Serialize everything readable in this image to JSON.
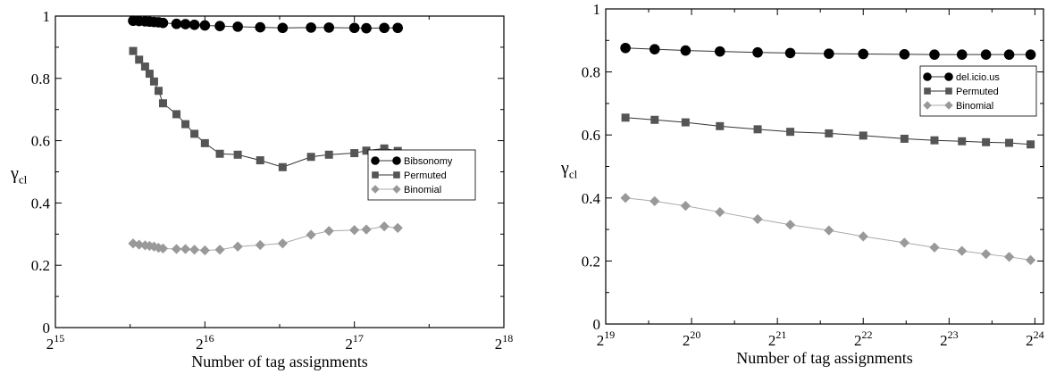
{
  "chart_data": [
    {
      "type": "line",
      "xlabel": "Number of tag assignments",
      "ylabel": "γ",
      "ylabel_sub": "cl",
      "x_scale": "log2",
      "xlim_exp": [
        15,
        18
      ],
      "x_tick_exps": [
        15,
        16,
        17,
        18
      ],
      "x_tick_base": "2",
      "ylim": [
        0,
        1
      ],
      "y_ticks": [
        "0",
        "0.2",
        "0.4",
        "0.6",
        "0.8",
        "1"
      ],
      "legend_position": "right",
      "series": [
        {
          "name": "Bibsonomy",
          "marker": "circle",
          "color": "#000000",
          "x_exp": [
            15.52,
            15.56,
            15.6,
            15.63,
            15.66,
            15.69,
            15.72,
            15.81,
            15.87,
            15.93,
            16.0,
            16.1,
            16.22,
            16.37,
            16.52,
            16.71,
            16.83,
            17.0,
            17.08,
            17.2,
            17.29
          ],
          "y": [
            0.985,
            0.984,
            0.983,
            0.982,
            0.981,
            0.98,
            0.978,
            0.975,
            0.974,
            0.972,
            0.97,
            0.968,
            0.966,
            0.964,
            0.962,
            0.963,
            0.963,
            0.962,
            0.961,
            0.962,
            0.962
          ]
        },
        {
          "name": "Permuted",
          "marker": "square",
          "color": "#555555",
          "x_exp": [
            15.52,
            15.56,
            15.6,
            15.63,
            15.66,
            15.69,
            15.72,
            15.81,
            15.87,
            15.93,
            16.0,
            16.1,
            16.22,
            16.37,
            16.52,
            16.71,
            16.83,
            17.0,
            17.08,
            17.2,
            17.29
          ],
          "y": [
            0.888,
            0.86,
            0.838,
            0.815,
            0.79,
            0.76,
            0.72,
            0.685,
            0.653,
            0.622,
            0.592,
            0.558,
            0.555,
            0.537,
            0.515,
            0.548,
            0.555,
            0.56,
            0.568,
            0.575,
            0.567
          ]
        },
        {
          "name": "Binomial",
          "marker": "diamond",
          "color": "#999999",
          "x_exp": [
            15.52,
            15.56,
            15.6,
            15.63,
            15.66,
            15.69,
            15.72,
            15.81,
            15.87,
            15.93,
            16.0,
            16.1,
            16.22,
            16.37,
            16.52,
            16.71,
            16.83,
            17.0,
            17.08,
            17.2,
            17.29
          ],
          "y": [
            0.27,
            0.266,
            0.264,
            0.262,
            0.26,
            0.256,
            0.254,
            0.252,
            0.252,
            0.25,
            0.248,
            0.25,
            0.26,
            0.265,
            0.27,
            0.298,
            0.31,
            0.313,
            0.315,
            0.325,
            0.32
          ]
        }
      ]
    },
    {
      "type": "line",
      "xlabel": "Number of tag assignments",
      "ylabel": "γ",
      "ylabel_sub": "cl",
      "x_scale": "log2",
      "xlim_exp": [
        19,
        24.1
      ],
      "x_tick_exps": [
        19,
        20,
        21,
        22,
        23,
        24
      ],
      "x_tick_base": "2",
      "ylim": [
        0,
        1
      ],
      "y_ticks": [
        "0",
        "0.2",
        "0.4",
        "0.6",
        "0.8",
        "1"
      ],
      "legend_position": "right",
      "series": [
        {
          "name": "del.icio.us",
          "marker": "circle",
          "color": "#000000",
          "x_exp": [
            19.23,
            19.57,
            19.93,
            20.33,
            20.77,
            21.15,
            21.6,
            22.0,
            22.48,
            22.83,
            23.15,
            23.43,
            23.7,
            23.95
          ],
          "y": [
            0.876,
            0.872,
            0.868,
            0.865,
            0.862,
            0.86,
            0.858,
            0.857,
            0.856,
            0.855,
            0.855,
            0.855,
            0.855,
            0.855
          ]
        },
        {
          "name": "Permuted",
          "marker": "square",
          "color": "#555555",
          "x_exp": [
            19.23,
            19.57,
            19.93,
            20.33,
            20.77,
            21.15,
            21.6,
            22.0,
            22.48,
            22.83,
            23.15,
            23.43,
            23.7,
            23.95
          ],
          "y": [
            0.655,
            0.648,
            0.64,
            0.628,
            0.618,
            0.61,
            0.605,
            0.598,
            0.588,
            0.583,
            0.58,
            0.577,
            0.575,
            0.57
          ]
        },
        {
          "name": "Binomial",
          "marker": "diamond",
          "color": "#999999",
          "x_exp": [
            19.23,
            19.57,
            19.93,
            20.33,
            20.77,
            21.15,
            21.6,
            22.0,
            22.48,
            22.83,
            23.15,
            23.43,
            23.7,
            23.95
          ],
          "y": [
            0.4,
            0.39,
            0.375,
            0.355,
            0.333,
            0.315,
            0.297,
            0.278,
            0.258,
            0.243,
            0.232,
            0.222,
            0.213,
            0.203
          ]
        }
      ]
    }
  ]
}
